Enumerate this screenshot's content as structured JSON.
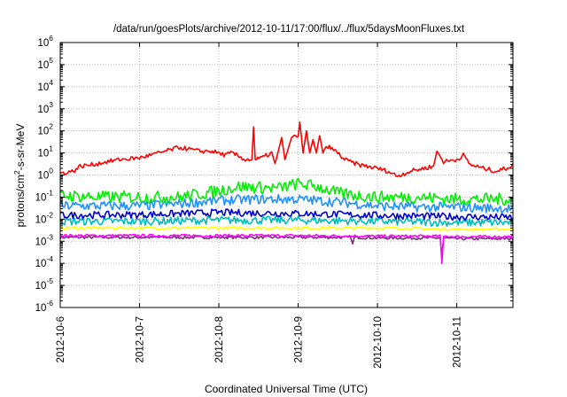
{
  "chart_data": {
    "type": "line",
    "title": "/data/run/goesPlots/archive/2012-10-11/17:00/flux/../flux/5daysMoonFluxes.txt",
    "xlabel": "Coordinated Universal Time (UTC)",
    "ylabel": "protons/cm²-s-sr-MeV",
    "ylabel_parts": {
      "pre": "protons/cm",
      "sup": "2",
      "post": "-s-sr-MeV"
    },
    "yscale": "log",
    "ylim_exp": [
      -6,
      6
    ],
    "xlim": [
      "2012-10-06",
      "2012-10-11T17:00"
    ],
    "x_ticks": [
      "2012-10-6",
      "2012-10-7",
      "2012-10-8",
      "2012-10-9",
      "2012-10-10",
      "2012-10-11"
    ],
    "y_ticks": [
      {
        "base": "10",
        "exp": "-6"
      },
      {
        "base": "10",
        "exp": "-5"
      },
      {
        "base": "10",
        "exp": "-4"
      },
      {
        "base": "10",
        "exp": "-3"
      },
      {
        "base": "10",
        "exp": "-2"
      },
      {
        "base": "10",
        "exp": "-1"
      },
      {
        "base": "10",
        "exp": "0"
      },
      {
        "base": "10",
        "exp": "1"
      },
      {
        "base": "10",
        "exp": "2"
      },
      {
        "base": "10",
        "exp": "3"
      },
      {
        "base": "10",
        "exp": "4"
      },
      {
        "base": "10",
        "exp": "5"
      },
      {
        "base": "10",
        "exp": "6"
      }
    ],
    "grid": true,
    "legend": "none",
    "series": [
      {
        "color": "#ff0000",
        "x": [
          "2012-10-06T00:00",
          "2012-10-06T04:00",
          "2012-10-06T06:00",
          "2012-10-06T10:00",
          "2012-10-06T14:00",
          "2012-10-06T18:00",
          "2012-10-07T00:00",
          "2012-10-07T06:00",
          "2012-10-07T12:00",
          "2012-10-07T18:00",
          "2012-10-07T22:00",
          "2012-10-08T02:00",
          "2012-10-08T04:00",
          "2012-10-08T08:00",
          "2012-10-08T10:00",
          "2012-10-08T10:30",
          "2012-10-08T11:00",
          "2012-10-08T13:00",
          "2012-10-08T16:00",
          "2012-10-08T17:00",
          "2012-10-08T19:00",
          "2012-10-08T20:00",
          "2012-10-08T22:00",
          "2012-10-09T00:00",
          "2012-10-09T00:30",
          "2012-10-09T01:30",
          "2012-10-09T02:30",
          "2012-10-09T03:30",
          "2012-10-09T04:30",
          "2012-10-09T05:30",
          "2012-10-09T06:30",
          "2012-10-09T07:30",
          "2012-10-09T09:00",
          "2012-10-09T12:00",
          "2012-10-09T14:00",
          "2012-10-09T18:00",
          "2012-10-10T00:00",
          "2012-10-10T03:00",
          "2012-10-10T06:00",
          "2012-10-10T10:00",
          "2012-10-10T14:00",
          "2012-10-10T17:00",
          "2012-10-10T18:00",
          "2012-10-10T20:00",
          "2012-10-11T00:00",
          "2012-10-11T02:00",
          "2012-10-11T04:00",
          "2012-10-11T08:00",
          "2012-10-11T12:00",
          "2012-10-11T15:00",
          "2012-10-11T17:00"
        ],
        "y": [
          1.2,
          1.5,
          2.5,
          3,
          4,
          5,
          6,
          10,
          18,
          12,
          12,
          8,
          10,
          5,
          5,
          150,
          5,
          6,
          10,
          3,
          50,
          5,
          50,
          60,
          250,
          10,
          100,
          10,
          40,
          10,
          60,
          10,
          20,
          10,
          5,
          3,
          2,
          1.5,
          0.9,
          1.5,
          2,
          2.5,
          12,
          4,
          5,
          8,
          3,
          2,
          1.5,
          2,
          3
        ]
      },
      {
        "color": "#00ee00",
        "x": [
          "2012-10-06T00:00",
          "2012-10-06T12:00",
          "2012-10-07T00:00",
          "2012-10-07T12:00",
          "2012-10-07T20:00",
          "2012-10-08T06:00",
          "2012-10-08T18:00",
          "2012-10-09T00:00",
          "2012-10-09T06:00",
          "2012-10-09T12:00",
          "2012-10-09T18:00",
          "2012-10-10T00:00",
          "2012-10-10T12:00",
          "2012-10-11T00:00",
          "2012-10-11T12:00",
          "2012-10-11T17:00"
        ],
        "y": [
          0.12,
          0.1,
          0.1,
          0.1,
          0.15,
          0.3,
          0.25,
          0.4,
          0.3,
          0.15,
          0.12,
          0.1,
          0.1,
          0.08,
          0.08,
          0.08
        ]
      },
      {
        "color": "#1e90ff",
        "x": [
          "2012-10-06T00:00",
          "2012-10-06T12:00",
          "2012-10-07T00:00",
          "2012-10-07T12:00",
          "2012-10-08T00:00",
          "2012-10-08T12:00",
          "2012-10-09T00:00",
          "2012-10-09T12:00",
          "2012-10-10T00:00",
          "2012-10-10T12:00",
          "2012-10-11T00:00",
          "2012-10-11T17:00"
        ],
        "y": [
          0.04,
          0.04,
          0.04,
          0.05,
          0.07,
          0.08,
          0.08,
          0.06,
          0.04,
          0.035,
          0.035,
          0.03
        ]
      },
      {
        "color": "#0000cc",
        "x": [
          "2012-10-06T00:00",
          "2012-10-07T00:00",
          "2012-10-08T00:00",
          "2012-10-09T00:00",
          "2012-10-10T00:00",
          "2012-10-11T00:00",
          "2012-10-11T17:00"
        ],
        "y": [
          0.015,
          0.016,
          0.02,
          0.018,
          0.015,
          0.013,
          0.012
        ]
      },
      {
        "color": "#00bbbb",
        "x": [
          "2012-10-06T00:00",
          "2012-10-07T00:00",
          "2012-10-08T00:00",
          "2012-10-09T00:00",
          "2012-10-10T00:00",
          "2012-10-11T00:00",
          "2012-10-11T17:00"
        ],
        "y": [
          0.008,
          0.008,
          0.009,
          0.009,
          0.008,
          0.007,
          0.007
        ]
      },
      {
        "color": "#ffff00",
        "x": [
          "2012-10-06T00:00",
          "2012-10-07T00:00",
          "2012-10-08T00:00",
          "2012-10-09T00:00",
          "2012-10-10T00:00",
          "2012-10-11T00:00",
          "2012-10-11T17:00"
        ],
        "y": [
          0.004,
          0.004,
          0.004,
          0.004,
          0.004,
          0.0035,
          0.0035
        ]
      },
      {
        "color": "#ff00ff",
        "x": [
          "2012-10-06T00:00",
          "2012-10-07T00:00",
          "2012-10-08T00:00",
          "2012-10-09T00:00",
          "2012-10-10T00:00",
          "2012-10-10T19:00",
          "2012-10-10T19:30",
          "2012-10-10T20:00",
          "2012-10-11T00:00",
          "2012-10-11T17:00"
        ],
        "y": [
          0.0018,
          0.0018,
          0.0018,
          0.0018,
          0.0017,
          0.0017,
          0.0001,
          0.0017,
          0.0016,
          0.0016
        ]
      },
      {
        "color": "#7a2b7a",
        "x": [
          "2012-10-06T00:00",
          "2012-10-07T00:00",
          "2012-10-08T00:00",
          "2012-10-09T00:00",
          "2012-10-09T16:00",
          "2012-10-09T16:30",
          "2012-10-09T17:00",
          "2012-10-10T00:00",
          "2012-10-10T19:00",
          "2012-10-10T19:30",
          "2012-10-10T20:00",
          "2012-10-11T00:00",
          "2012-10-11T17:00"
        ],
        "y": [
          0.0015,
          0.0015,
          0.0015,
          0.0015,
          0.0015,
          0.0007,
          0.0015,
          0.0014,
          0.0014,
          0.0002,
          0.0014,
          0.0013,
          0.0013
        ]
      }
    ]
  }
}
